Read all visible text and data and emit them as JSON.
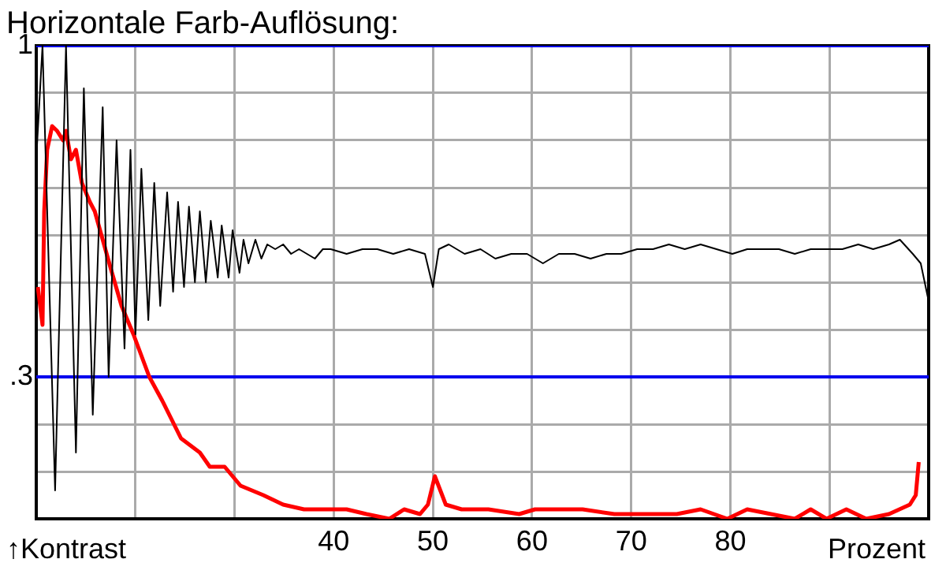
{
  "chart_data": {
    "type": "line",
    "title": "Horizontale Farb-Auflösung:",
    "xlabel": "Prozent",
    "ylabel": "↑Kontrast",
    "xlim": [
      10,
      100
    ],
    "ylim": [
      0,
      1
    ],
    "xticks": [
      {
        "value": 10,
        "label": null
      },
      {
        "value": 20,
        "label": null
      },
      {
        "value": 30,
        "label": null
      },
      40,
      50,
      60,
      70,
      80,
      {
        "value": 90,
        "label": null
      },
      {
        "value": 100,
        "label": null
      }
    ],
    "yticks": [
      {
        "value": 0,
        "label": null
      },
      {
        "value": 0.1,
        "label": null
      },
      {
        "value": 0.2,
        "label": null
      },
      {
        "value": 0.3,
        "label": ".3"
      },
      {
        "value": 0.4,
        "label": null
      },
      {
        "value": 0.5,
        "label": null
      },
      {
        "value": 0.6,
        "label": null
      },
      {
        "value": 0.7,
        "label": null
      },
      {
        "value": 0.8,
        "label": null
      },
      {
        "value": 0.9,
        "label": null
      },
      1
    ],
    "grid": true,
    "legend": false,
    "marker": "none",
    "ref_lines": [
      {
        "axis": "y",
        "value": 1,
        "color": "#0000ee"
      },
      {
        "axis": "y",
        "value": 0.3,
        "color": "#0000ee"
      }
    ],
    "series": [
      {
        "color": "#000000",
        "x": [
          10.0,
          10.63,
          11.9,
          13.0,
          14.0,
          14.8,
          15.7,
          16.7,
          17.3,
          18.1,
          18.9,
          19.5,
          20.0,
          20.6,
          21.3,
          21.9,
          22.5,
          23.2,
          23.8,
          24.3,
          24.9,
          25.4,
          26.0,
          26.5,
          27.1,
          27.6,
          28.3,
          28.7,
          29.4,
          29.8,
          30.5,
          30.9,
          31.4,
          32.1,
          32.7,
          33.3,
          34.1,
          34.9,
          35.7,
          36.5,
          38.1,
          38.9,
          39.7,
          41.3,
          42.9,
          44.4,
          46.0,
          47.6,
          49.2,
          50.0,
          50.6,
          51.6,
          53.2,
          54.8,
          56.3,
          57.9,
          59.5,
          61.1,
          62.7,
          64.3,
          65.9,
          67.5,
          69.0,
          70.6,
          72.2,
          73.8,
          75.4,
          77.0,
          78.6,
          80.2,
          81.7,
          83.3,
          84.9,
          86.5,
          88.1,
          89.7,
          91.3,
          92.9,
          94.4,
          96.0,
          97.1,
          98.4,
          99.2,
          100
        ],
        "values": [
          0.76,
          1.0,
          0.06,
          1.0,
          0.14,
          0.91,
          0.22,
          0.87,
          0.3,
          0.8,
          0.36,
          0.78,
          0.39,
          0.74,
          0.42,
          0.71,
          0.45,
          0.69,
          0.48,
          0.67,
          0.49,
          0.66,
          0.5,
          0.65,
          0.5,
          0.63,
          0.51,
          0.62,
          0.51,
          0.61,
          0.52,
          0.59,
          0.54,
          0.59,
          0.55,
          0.58,
          0.57,
          0.58,
          0.56,
          0.57,
          0.55,
          0.57,
          0.57,
          0.56,
          0.57,
          0.57,
          0.56,
          0.57,
          0.56,
          0.49,
          0.57,
          0.58,
          0.56,
          0.57,
          0.55,
          0.56,
          0.56,
          0.54,
          0.56,
          0.56,
          0.55,
          0.56,
          0.56,
          0.57,
          0.57,
          0.58,
          0.57,
          0.58,
          0.57,
          0.56,
          0.57,
          0.57,
          0.57,
          0.56,
          0.57,
          0.57,
          0.57,
          0.58,
          0.57,
          0.58,
          0.59,
          0.56,
          0.54,
          0.46
        ]
      },
      {
        "color": "#ff0000",
        "x": [
          10.16,
          10.63,
          10.8,
          11.1,
          11.6,
          12.1,
          12.7,
          13.0,
          13.5,
          14.0,
          14.6,
          15.4,
          15.9,
          16.7,
          17.5,
          18.6,
          19.8,
          21.4,
          22.7,
          24.6,
          26.5,
          27.5,
          29.0,
          30.6,
          32.9,
          34.9,
          37.0,
          39.2,
          41.3,
          43.3,
          45.6,
          47.1,
          48.7,
          49.5,
          50.2,
          51.3,
          52.9,
          55.6,
          58.7,
          60.3,
          61.9,
          65.1,
          68.3,
          71.4,
          74.6,
          77.0,
          79.7,
          81.7,
          84.1,
          86.5,
          88.1,
          89.7,
          91.7,
          93.7,
          96.0,
          98.1,
          98.7,
          99.0
        ],
        "values": [
          0.49,
          0.41,
          0.65,
          0.78,
          0.83,
          0.82,
          0.8,
          0.82,
          0.76,
          0.78,
          0.71,
          0.67,
          0.65,
          0.59,
          0.53,
          0.45,
          0.39,
          0.3,
          0.25,
          0.17,
          0.14,
          0.11,
          0.11,
          0.07,
          0.05,
          0.03,
          0.02,
          0.02,
          0.02,
          0.01,
          0.0,
          0.02,
          0.01,
          0.03,
          0.09,
          0.03,
          0.02,
          0.02,
          0.01,
          0.02,
          0.02,
          0.02,
          0.01,
          0.01,
          0.01,
          0.02,
          0.0,
          0.02,
          0.01,
          0.0,
          0.02,
          0.0,
          0.02,
          0.0,
          0.01,
          0.03,
          0.05,
          0.12
        ]
      }
    ]
  }
}
